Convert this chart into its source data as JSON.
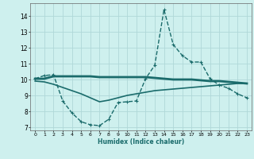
{
  "xlabel": "Humidex (Indice chaleur)",
  "bg_color": "#cef0ee",
  "grid_color": "#b0d8d8",
  "line_color": "#1a6b6b",
  "xlim": [
    -0.5,
    23.5
  ],
  "ylim": [
    6.8,
    14.8
  ],
  "yticks": [
    7,
    8,
    9,
    10,
    11,
    12,
    13,
    14
  ],
  "xticks": [
    0,
    1,
    2,
    3,
    4,
    5,
    6,
    7,
    8,
    9,
    10,
    11,
    12,
    13,
    14,
    15,
    16,
    17,
    18,
    19,
    20,
    21,
    22,
    23
  ],
  "series": [
    {
      "x": [
        0,
        1,
        2,
        3,
        4,
        5,
        6,
        7,
        8,
        9,
        10,
        11,
        12,
        13,
        14,
        15,
        16,
        17,
        18,
        19,
        20,
        21,
        22,
        23
      ],
      "y": [
        10.05,
        10.05,
        10.2,
        10.2,
        10.2,
        10.2,
        10.2,
        10.15,
        10.15,
        10.15,
        10.15,
        10.15,
        10.15,
        10.1,
        10.05,
        10.0,
        10.0,
        10.0,
        9.95,
        9.9,
        9.9,
        9.85,
        9.8,
        9.75
      ],
      "marker": null,
      "linestyle": "-",
      "linewidth": 2.0
    },
    {
      "x": [
        0,
        1,
        2,
        3,
        4,
        5,
        6,
        7,
        8,
        9,
        10,
        11,
        12,
        13,
        14,
        15,
        16,
        17,
        18,
        19,
        20,
        21,
        22,
        23
      ],
      "y": [
        9.9,
        9.85,
        9.7,
        9.5,
        9.3,
        9.1,
        8.85,
        8.6,
        8.7,
        8.85,
        9.0,
        9.1,
        9.2,
        9.3,
        9.35,
        9.4,
        9.45,
        9.5,
        9.55,
        9.6,
        9.65,
        9.7,
        9.75,
        9.75
      ],
      "marker": null,
      "linestyle": "-",
      "linewidth": 1.2
    },
    {
      "x": [
        0,
        1,
        2,
        3,
        4,
        5,
        6,
        7,
        8,
        9,
        10,
        11,
        12,
        13,
        14,
        15,
        16,
        17,
        18,
        19,
        20,
        21,
        22,
        23
      ],
      "y": [
        10.05,
        10.25,
        10.3,
        8.65,
        7.9,
        7.35,
        7.15,
        7.1,
        7.5,
        8.55,
        8.6,
        8.65,
        10.05,
        10.9,
        14.4,
        12.2,
        11.5,
        11.1,
        11.1,
        10.05,
        9.65,
        9.45,
        9.1,
        8.85
      ],
      "marker": "+",
      "linestyle": "--",
      "linewidth": 1.0
    }
  ]
}
